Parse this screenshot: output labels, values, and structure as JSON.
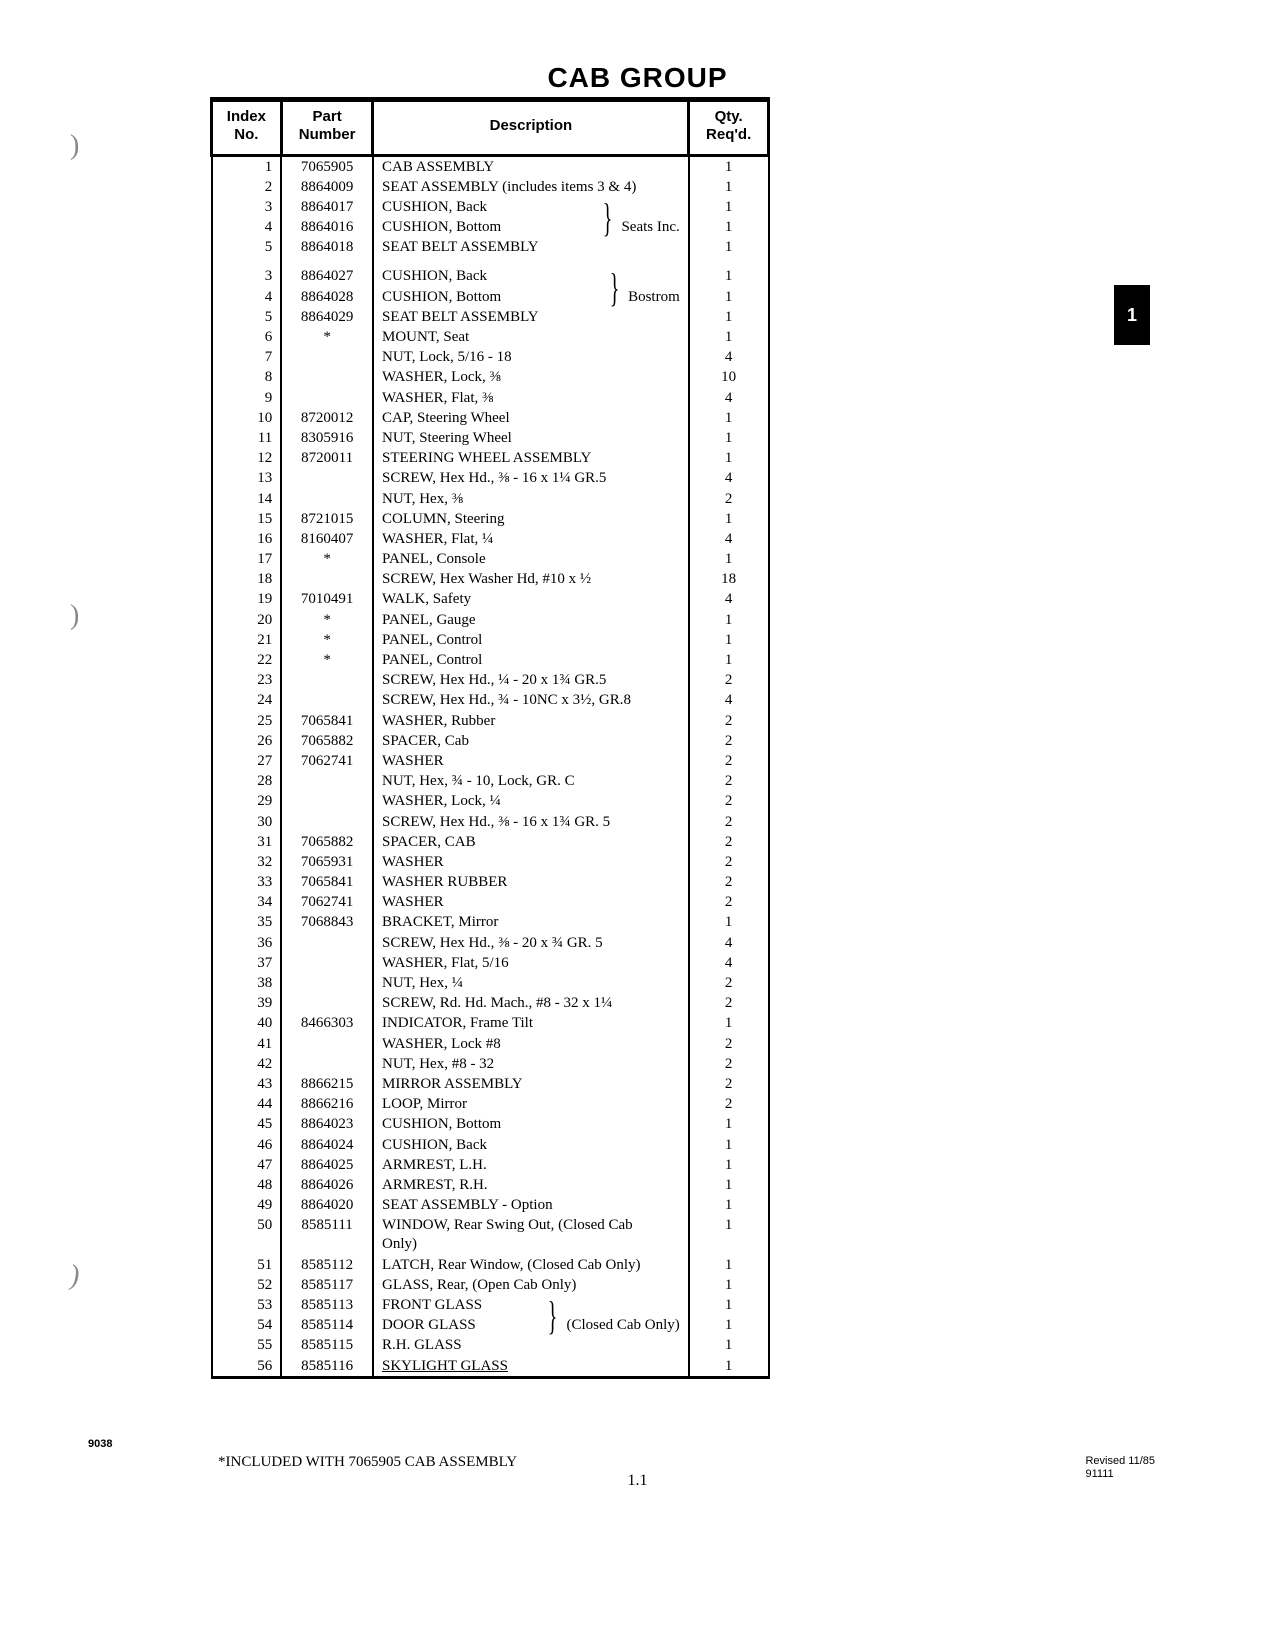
{
  "title": "CAB GROUP",
  "columns": [
    "Index\nNo.",
    "Part\nNumber",
    "Description",
    "Qty.\nReq'd."
  ],
  "tab_label": "1",
  "group_notes": {
    "seats_inc": "Seats Inc.",
    "bostrom": "Bostrom",
    "closed_cab": "(Closed Cab Only)"
  },
  "rows": [
    {
      "idx": "1",
      "pn": "7065905",
      "desc": "CAB ASSEMBLY",
      "qty": "1"
    },
    {
      "idx": "2",
      "pn": "8864009",
      "desc": "SEAT ASSEMBLY (includes items 3 & 4)",
      "qty": "1"
    },
    {
      "idx": "3",
      "pn": "8864017",
      "desc": "CUSHION, Back",
      "qty": "1",
      "grp": "seats_inc",
      "grp_pos": "top"
    },
    {
      "idx": "4",
      "pn": "8864016",
      "desc": "CUSHION, Bottom",
      "qty": "1",
      "grp": "seats_inc",
      "grp_pos": "mid"
    },
    {
      "idx": "5",
      "pn": "8864018",
      "desc": "SEAT BELT ASSEMBLY",
      "qty": "1",
      "grp": "seats_inc",
      "grp_pos": "bot"
    },
    {
      "spacer": true
    },
    {
      "idx": "3",
      "pn": "8864027",
      "desc": "CUSHION, Back",
      "qty": "1",
      "grp": "bostrom",
      "grp_pos": "top"
    },
    {
      "idx": "4",
      "pn": "8864028",
      "desc": "CUSHION, Bottom",
      "qty": "1",
      "grp": "bostrom",
      "grp_pos": "mid"
    },
    {
      "idx": "5",
      "pn": "8864029",
      "desc": "SEAT BELT ASSEMBLY",
      "qty": "1",
      "grp": "bostrom",
      "grp_pos": "bot"
    },
    {
      "idx": "6",
      "pn": "*",
      "desc": "MOUNT, Seat",
      "qty": "1"
    },
    {
      "idx": "7",
      "pn": "",
      "desc": "NUT, Lock, 5/16 - 18",
      "qty": "4"
    },
    {
      "idx": "8",
      "pn": "",
      "desc": "WASHER, Lock, ⅜",
      "qty": "10"
    },
    {
      "idx": "9",
      "pn": "",
      "desc": "WASHER, Flat, ⅜",
      "qty": "4"
    },
    {
      "idx": "10",
      "pn": "8720012",
      "desc": "CAP, Steering Wheel",
      "qty": "1"
    },
    {
      "idx": "11",
      "pn": "8305916",
      "desc": "NUT, Steering Wheel",
      "qty": "1"
    },
    {
      "idx": "12",
      "pn": "8720011",
      "desc": "STEERING WHEEL ASSEMBLY",
      "qty": "1"
    },
    {
      "idx": "13",
      "pn": "",
      "desc": "SCREW, Hex Hd., ⅜ - 16 x 1¼ GR.5",
      "qty": "4"
    },
    {
      "idx": "14",
      "pn": "",
      "desc": "NUT, Hex, ⅜",
      "qty": "2"
    },
    {
      "idx": "15",
      "pn": "8721015",
      "desc": "COLUMN, Steering",
      "qty": "1"
    },
    {
      "idx": "16",
      "pn": "8160407",
      "desc": "WASHER, Flat, ¼",
      "qty": "4"
    },
    {
      "idx": "17",
      "pn": "*",
      "desc": "PANEL, Console",
      "qty": "1"
    },
    {
      "idx": "18",
      "pn": "",
      "desc": "SCREW, Hex Washer Hd, #10 x ½",
      "qty": "18"
    },
    {
      "idx": "19",
      "pn": "7010491",
      "desc": "WALK, Safety",
      "qty": "4"
    },
    {
      "idx": "20",
      "pn": "*",
      "desc": "PANEL, Gauge",
      "qty": "1"
    },
    {
      "idx": "21",
      "pn": "*",
      "desc": "PANEL, Control",
      "qty": "1"
    },
    {
      "idx": "22",
      "pn": "*",
      "desc": "PANEL, Control",
      "qty": "1"
    },
    {
      "idx": "23",
      "pn": "",
      "desc": "SCREW, Hex Hd., ¼ - 20 x 1¾ GR.5",
      "qty": "2"
    },
    {
      "idx": "24",
      "pn": "",
      "desc": "SCREW, Hex Hd., ¾ - 10NC x 3½, GR.8",
      "qty": "4"
    },
    {
      "idx": "25",
      "pn": "7065841",
      "desc": "WASHER, Rubber",
      "qty": "2"
    },
    {
      "idx": "26",
      "pn": "7065882",
      "desc": "SPACER, Cab",
      "qty": "2"
    },
    {
      "idx": "27",
      "pn": "7062741",
      "desc": "WASHER",
      "qty": "2"
    },
    {
      "idx": "28",
      "pn": "",
      "desc": "NUT, Hex, ¾ - 10, Lock, GR. C",
      "qty": "2"
    },
    {
      "idx": "29",
      "pn": "",
      "desc": "WASHER, Lock, ¼",
      "qty": "2"
    },
    {
      "idx": "30",
      "pn": "",
      "desc": "SCREW, Hex Hd., ⅜ - 16 x 1¾ GR. 5",
      "qty": "2"
    },
    {
      "idx": "31",
      "pn": "7065882",
      "desc": "SPACER, CAB",
      "qty": "2"
    },
    {
      "idx": "32",
      "pn": "7065931",
      "desc": "WASHER",
      "qty": "2"
    },
    {
      "idx": "33",
      "pn": "7065841",
      "desc": "WASHER RUBBER",
      "qty": "2"
    },
    {
      "idx": "34",
      "pn": "7062741",
      "desc": "WASHER",
      "qty": "2"
    },
    {
      "idx": "35",
      "pn": "7068843",
      "desc": "BRACKET, Mirror",
      "qty": "1"
    },
    {
      "idx": "36",
      "pn": "",
      "desc": "SCREW, Hex Hd., ⅜ - 20 x ¾ GR. 5",
      "qty": "4"
    },
    {
      "idx": "37",
      "pn": "",
      "desc": "WASHER, Flat, 5/16",
      "qty": "4"
    },
    {
      "idx": "38",
      "pn": "",
      "desc": "NUT, Hex, ¼",
      "qty": "2"
    },
    {
      "idx": "39",
      "pn": "",
      "desc": "SCREW, Rd. Hd. Mach., #8 - 32 x 1¼",
      "qty": "2"
    },
    {
      "idx": "40",
      "pn": "8466303",
      "desc": "INDICATOR, Frame Tilt",
      "qty": "1"
    },
    {
      "idx": "41",
      "pn": "",
      "desc": "WASHER, Lock #8",
      "qty": "2"
    },
    {
      "idx": "42",
      "pn": "",
      "desc": "NUT, Hex, #8 - 32",
      "qty": "2"
    },
    {
      "idx": "43",
      "pn": "8866215",
      "desc": "MIRROR ASSEMBLY",
      "qty": "2"
    },
    {
      "idx": "44",
      "pn": "8866216",
      "desc": "LOOP, Mirror",
      "qty": "2"
    },
    {
      "idx": "45",
      "pn": "8864023",
      "desc": "CUSHION, Bottom",
      "qty": "1"
    },
    {
      "idx": "46",
      "pn": "8864024",
      "desc": "CUSHION, Back",
      "qty": "1"
    },
    {
      "idx": "47",
      "pn": "8864025",
      "desc": "ARMREST, L.H.",
      "qty": "1"
    },
    {
      "idx": "48",
      "pn": "8864026",
      "desc": "ARMREST, R.H.",
      "qty": "1"
    },
    {
      "idx": "49",
      "pn": "8864020",
      "desc": "SEAT ASSEMBLY - Option",
      "qty": "1"
    },
    {
      "idx": "50",
      "pn": "8585111",
      "desc": "WINDOW, Rear Swing Out, (Closed Cab Only)",
      "qty": "1",
      "wrap": true
    },
    {
      "idx": "51",
      "pn": "8585112",
      "desc": "LATCH, Rear Window, (Closed Cab Only)",
      "qty": "1"
    },
    {
      "idx": "52",
      "pn": "8585117",
      "desc": "GLASS, Rear, (Open Cab Only)",
      "qty": "1"
    },
    {
      "idx": "53",
      "pn": "8585113",
      "desc": "FRONT GLASS",
      "qty": "1",
      "grp": "closed_cab",
      "grp_pos": "top"
    },
    {
      "idx": "54",
      "pn": "8585114",
      "desc": "DOOR GLASS",
      "qty": "1",
      "grp": "closed_cab",
      "grp_pos": "mid"
    },
    {
      "idx": "55",
      "pn": "8585115",
      "desc": "R.H. GLASS",
      "qty": "1",
      "grp": "closed_cab",
      "grp_pos": "bot"
    },
    {
      "idx": "56",
      "pn": "8585116",
      "desc": "SKYLIGHT GLASS",
      "qty": "1",
      "underline": true
    }
  ],
  "footnote": "*INCLUDED WITH 7065905 CAB ASSEMBLY",
  "page_number": "1.1",
  "doc_number": "9038",
  "revised": "Revised 11/85\n91111"
}
